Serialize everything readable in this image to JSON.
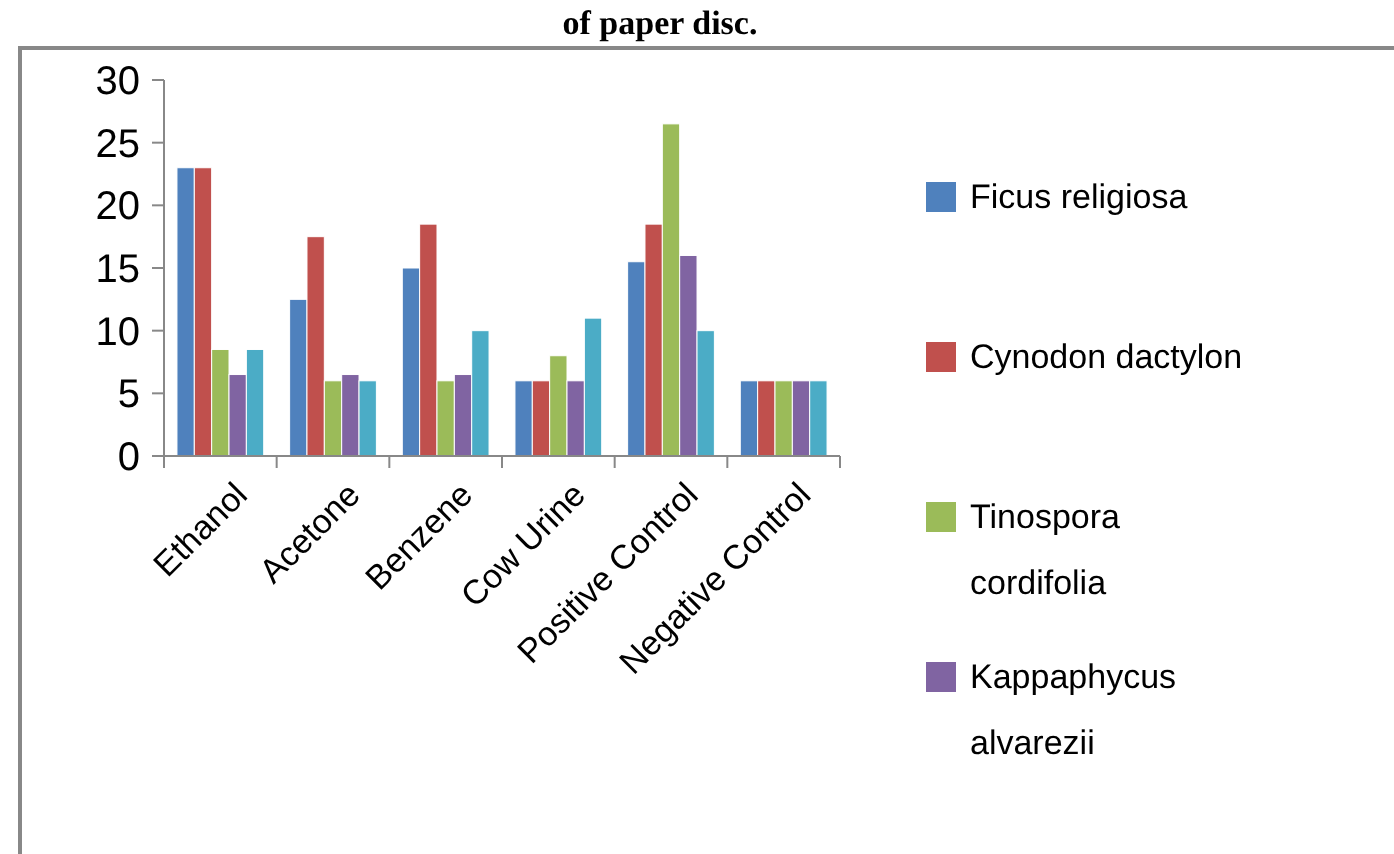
{
  "chart_data": {
    "type": "bar",
    "title": "of paper disc.",
    "categories": [
      "Ethanol",
      "Acetone",
      "Benzene",
      "Cow Urine",
      "Positive Control",
      "Negative Control"
    ],
    "series": [
      {
        "name": "Ficus religiosa",
        "color": "#4f81bd",
        "values": [
          23,
          12.5,
          15,
          6,
          15.5,
          6
        ]
      },
      {
        "name": "Cynodon dactylon",
        "color": "#c0504d",
        "values": [
          23,
          17.5,
          18.5,
          6,
          18.5,
          6
        ]
      },
      {
        "name": "Tinospora cordifolia",
        "color": "#9bbb59",
        "values": [
          8.5,
          6,
          6,
          8,
          26.5,
          6
        ]
      },
      {
        "name": "Kappaphycus alvarezii",
        "color": "#8064a2",
        "values": [
          6.5,
          6.5,
          6.5,
          6,
          16,
          6
        ]
      },
      {
        "color": "#4bacc6",
        "values": [
          8.5,
          6,
          10,
          11,
          10,
          6
        ]
      }
    ],
    "ylim": [
      0,
      30
    ],
    "yticks": [
      0,
      5,
      10,
      15,
      20,
      25,
      30
    ],
    "grid": false,
    "legend": "right"
  }
}
